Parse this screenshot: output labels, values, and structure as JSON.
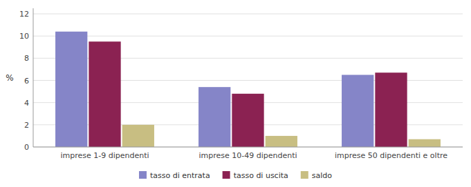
{
  "chart_data": {
    "type": "bar",
    "ylabel": "%",
    "categories": [
      "imprese 1-9 dipendenti",
      "imprese 10-49 dipendenti",
      "imprese 50 dipendenti e oltre"
    ],
    "series": [
      {
        "name": "tasso di entrata",
        "color": "#8585c8",
        "values": [
          10.4,
          5.4,
          6.5
        ]
      },
      {
        "name": "tasso di uscita",
        "color": "#8b2252",
        "values": [
          9.5,
          4.8,
          6.7
        ]
      },
      {
        "name": "saldo",
        "color": "#c8be82",
        "values": [
          2.0,
          1.0,
          0.7
        ]
      }
    ],
    "ylim": [
      0,
      12.5
    ],
    "yticks": [
      0,
      2,
      4,
      6,
      8,
      10,
      12
    ],
    "grid": true,
    "legend": "bottom"
  }
}
